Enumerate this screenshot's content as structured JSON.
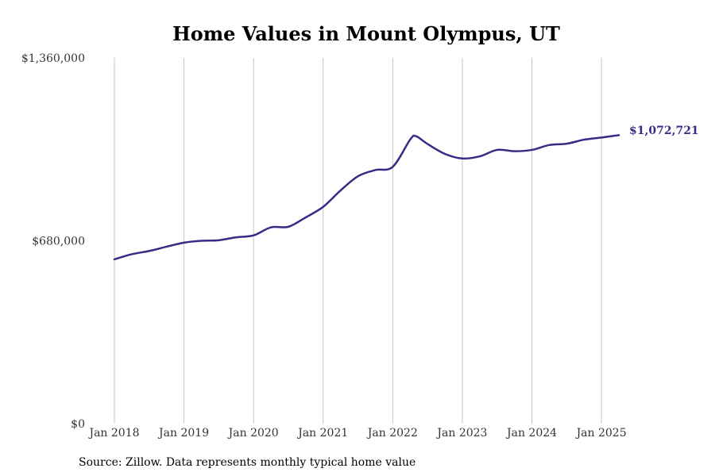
{
  "chart_data": {
    "type": "line",
    "title": "Home Values in Mount Olympus, UT",
    "source": "Source: Zillow. Data represents monthly typical home value",
    "xlabel": "",
    "ylabel": "",
    "ylim": [
      0,
      1360000
    ],
    "y_ticks": [
      0,
      680000,
      1360000
    ],
    "y_tick_labels": [
      "$0",
      "$680,000",
      "$1,360,000"
    ],
    "x_ticks": [
      "2018-01",
      "2019-01",
      "2020-01",
      "2021-01",
      "2022-01",
      "2023-01",
      "2024-01",
      "2025-01"
    ],
    "x_tick_labels": [
      "Jan 2018",
      "Jan 2019",
      "Jan 2020",
      "Jan 2021",
      "Jan 2022",
      "Jan 2023",
      "Jan 2024",
      "Jan 2025"
    ],
    "grid": "vertical",
    "line_color": "#352d85",
    "end_label": "$1,072,721",
    "series": [
      {
        "x": [
          "2018-01",
          "2018-04",
          "2018-07",
          "2018-10",
          "2019-01",
          "2019-04",
          "2019-07",
          "2019-10",
          "2020-01",
          "2020-04",
          "2020-07",
          "2020-10",
          "2021-01",
          "2021-04",
          "2021-07",
          "2021-10",
          "2022-01",
          "2022-04",
          "2022-05",
          "2022-07",
          "2022-10",
          "2023-01",
          "2023-04",
          "2023-07",
          "2023-10",
          "2024-01",
          "2024-04",
          "2024-07",
          "2024-10",
          "2025-01",
          "2025-04"
        ],
        "values": [
          611000,
          630000,
          642000,
          658000,
          673000,
          680000,
          682000,
          693000,
          700000,
          730000,
          732000,
          767000,
          806000,
          867000,
          920000,
          943000,
          955000,
          1056000,
          1069000,
          1040000,
          1003000,
          986000,
          994000,
          1018000,
          1013000,
          1018000,
          1036000,
          1041000,
          1056000,
          1064000,
          1072721
        ]
      }
    ]
  }
}
